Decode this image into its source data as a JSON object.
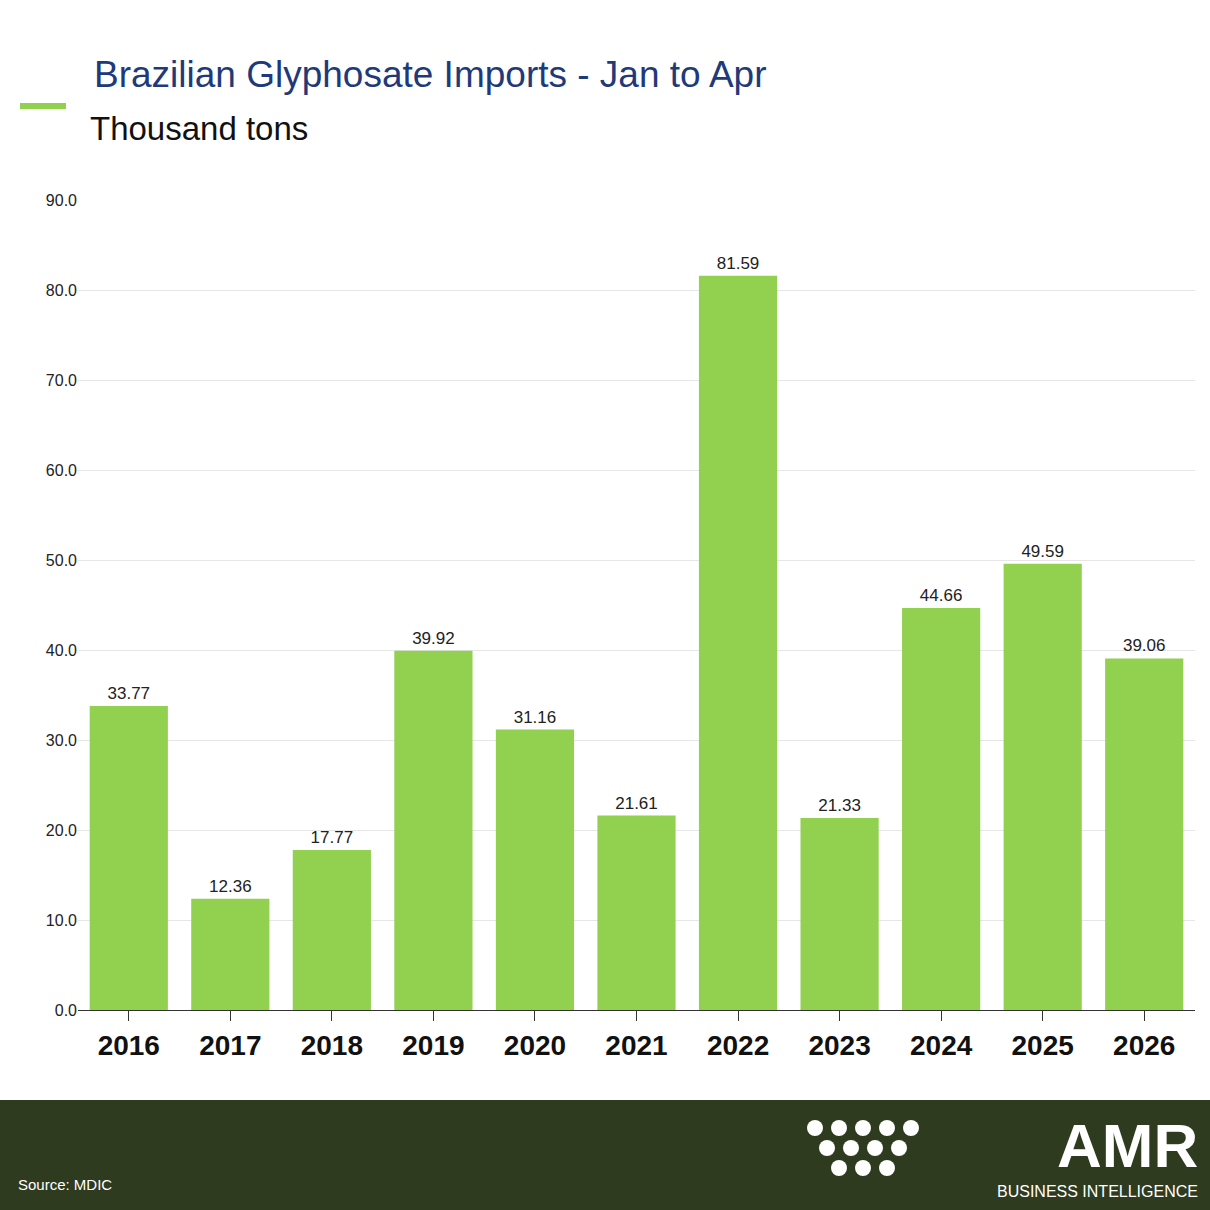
{
  "chart_data": {
    "type": "bar",
    "title": "Brazilian Glyphosate Imports - Jan to Apr",
    "subtitle": "Thousand tons",
    "source": "Source: MDIC",
    "annotations": [
      "AMR",
      "BUSINESS INTELLIGENCE"
    ],
    "categories": [
      "2016",
      "2017",
      "2018",
      "2019",
      "2020",
      "2021",
      "2022",
      "2023",
      "2024",
      "2025",
      "2026"
    ],
    "values": [
      33.77,
      12.36,
      17.77,
      39.92,
      31.16,
      21.61,
      81.59,
      21.33,
      44.66,
      49.59,
      39.06
    ],
    "color": "#92d050",
    "ylim": [
      0,
      90
    ],
    "yticks": [
      {
        "value": 0,
        "label": "0.0"
      },
      {
        "value": 10,
        "label": "10.0"
      },
      {
        "value": 20,
        "label": "20.0"
      },
      {
        "value": 30,
        "label": "30.0"
      },
      {
        "value": 40,
        "label": "40.0"
      },
      {
        "value": 50,
        "label": "50.0"
      },
      {
        "value": 60,
        "label": "60.0"
      },
      {
        "value": 70,
        "label": "70.0"
      },
      {
        "value": 80,
        "label": "80.0"
      },
      {
        "value": 90,
        "label": "90.0"
      }
    ],
    "grid": true,
    "data_labels": true
  }
}
